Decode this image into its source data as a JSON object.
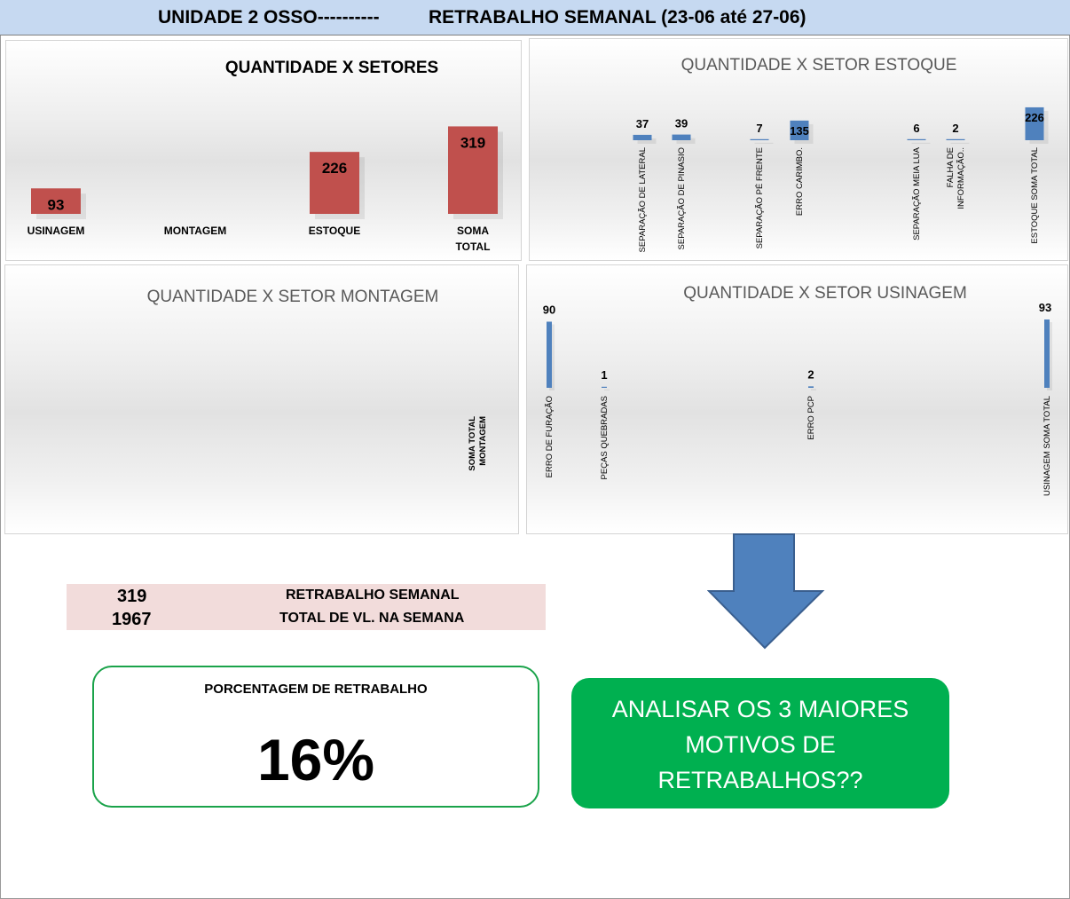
{
  "header": {
    "left": "UNIDADE 2 OSSO----------",
    "right": "RETRABALHO SEMANAL (23-06 até 27-06)"
  },
  "colors": {
    "red_bar": "#c0504d",
    "blue_bar": "#4f81bd",
    "green": "#00b050",
    "header_bg": "#c6d9f1",
    "pink": "#f2dcdb"
  },
  "chart_data": [
    {
      "type": "bar",
      "title": "QUANTIDADE X SETORES",
      "categories": [
        "USINAGEM",
        "MONTAGEM",
        "ESTOQUE",
        "SOMA TOTAL"
      ],
      "values": [
        93,
        null,
        226,
        319
      ],
      "data_labels": [
        "93",
        "",
        "226",
        "319"
      ]
    },
    {
      "type": "bar",
      "title": "QUANTIDADE X SETOR ESTOQUE",
      "categories": [
        "SEPARAÇÃO DE LATERAL",
        "SEPARAÇÃO DE PINASIO",
        "SEPARAÇÃO PÉ FRENTE",
        "ERRO CARIMBO.",
        "SEPARAÇÃO MEIA LUA",
        "FALHA DE INFORMAÇÃO..",
        "ESTOQUE SOMA TOTAL"
      ],
      "values": [
        37,
        39,
        7,
        135,
        6,
        2,
        226
      ],
      "data_labels": [
        "37",
        "39",
        "7",
        "135",
        "6",
        "2",
        "226"
      ]
    },
    {
      "type": "bar",
      "title": "QUANTIDADE X SETOR MONTAGEM",
      "categories": [
        "SOMA TOTAL MONTAGEM"
      ],
      "values": [
        null
      ]
    },
    {
      "type": "bar",
      "title": "QUANTIDADE X SETOR USINAGEM",
      "categories": [
        "ERRO DE FURAÇÃO",
        "PEÇAS QUEBRADAS",
        "ERRO PCP",
        "USINAGEM SOMA TOTAL"
      ],
      "values": [
        90,
        1,
        2,
        93
      ],
      "data_labels": [
        "90",
        "1",
        "2",
        "93"
      ]
    }
  ],
  "summary": {
    "rows": [
      {
        "value": "319",
        "label": "RETRABALHO SEMANAL"
      },
      {
        "value": "1967",
        "label": "TOTAL DE VL. NA SEMANA"
      }
    ]
  },
  "percentage": {
    "label": "PORCENTAGEM DE RETRABALHO",
    "value": "16%"
  },
  "action": {
    "lines": [
      "ANALISAR OS 3 MAIORES",
      "MOTIVOS DE",
      "RETRABALHOS??"
    ]
  }
}
